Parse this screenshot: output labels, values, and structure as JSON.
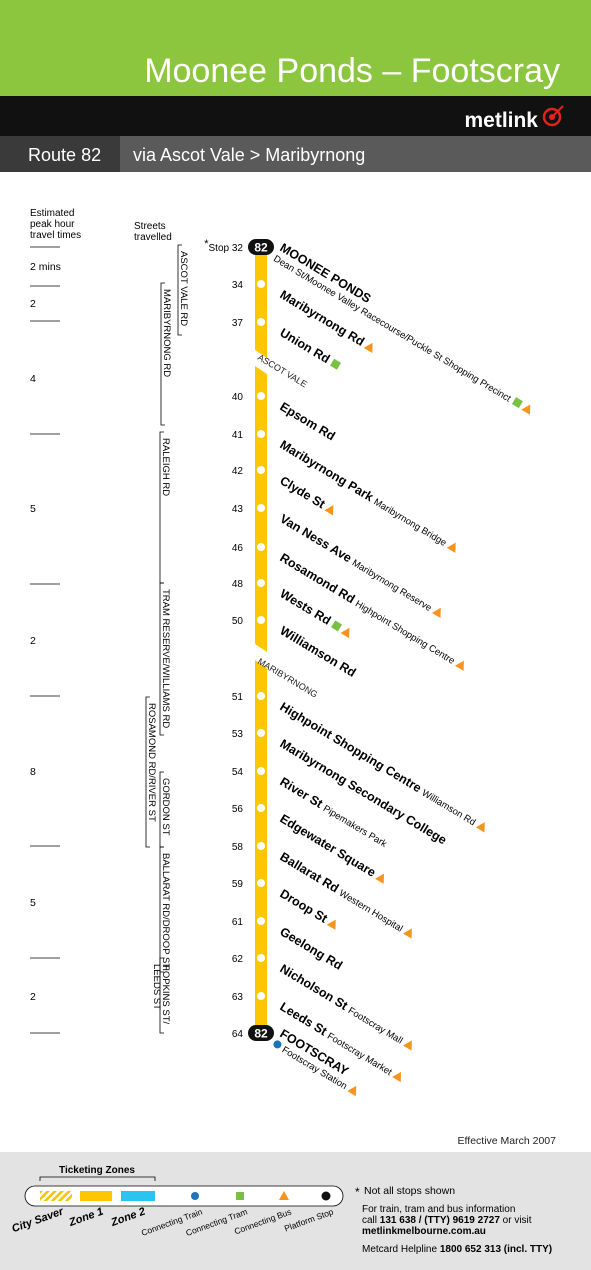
{
  "header": {
    "title": "Moonee Ponds – Footscray",
    "brand": "metlink",
    "route_label": "Route",
    "route_number": "82",
    "via": "via Ascot Vale > Maribyrnong"
  },
  "travel_times": {
    "heading": [
      "Estimated",
      "peak hour",
      "travel times"
    ],
    "times": [
      "2 mins",
      "2",
      "4",
      "5",
      "2",
      "8",
      "5",
      "2"
    ]
  },
  "streets": {
    "heading": [
      "Streets",
      "travelled"
    ],
    "items": [
      [
        "ASCOT VALE RD"
      ],
      [
        "MARIBYRNONG RD"
      ],
      [
        "RALEIGH RD"
      ],
      [
        "TRAM RESERVE/WILLIAMS RD"
      ],
      [
        "ROSAMOND RD/RIVER ST"
      ],
      [
        "GORDON ST"
      ],
      [
        "BALLARAT RD/DROOP ST"
      ],
      [
        "HOPKINS ST/",
        "LEEDS ST"
      ]
    ]
  },
  "route": {
    "footnote_mark": "*",
    "stop_prefix": "Stop",
    "sections": [
      "ASCOT VALE",
      "MARIBYRNONG"
    ],
    "stops": [
      {
        "number": "32",
        "name": "MOONEE PONDS",
        "note": "Dean St/Moonee Valley Racecourse/Puckle St Shopping Precinct",
        "connections": [
          "tram",
          "bus"
        ]
      },
      {
        "number": "34",
        "name": "Maribyrnong Rd",
        "connections": [
          "bus"
        ]
      },
      {
        "number": "37",
        "name": "Union Rd",
        "connections": [
          "tram"
        ]
      },
      {
        "number": "40",
        "name": "Epsom Rd"
      },
      {
        "number": "41",
        "name": "Maribyrnong Park",
        "note": "Maribyrnong Bridge",
        "connections": [
          "bus"
        ]
      },
      {
        "number": "42",
        "name": "Clyde St",
        "connections": [
          "bus"
        ]
      },
      {
        "number": "43",
        "name": "Van Ness Ave",
        "note": "Maribyrnong Reserve",
        "connections": [
          "bus"
        ]
      },
      {
        "number": "46",
        "name": "Rosamond Rd",
        "note": "Highpoint Shopping Centre",
        "connections": [
          "bus"
        ]
      },
      {
        "number": "48",
        "name": "Wests Rd",
        "connections": [
          "tram",
          "bus"
        ]
      },
      {
        "number": "50",
        "name": "Williamson Rd"
      },
      {
        "number": "51",
        "name": "Highpoint Shopping Centre",
        "note": "Williamson Rd",
        "connections": [
          "bus"
        ]
      },
      {
        "number": "53",
        "name": "Maribyrnong Secondary College"
      },
      {
        "number": "54",
        "name": "River St",
        "note": "Pipemakers Park"
      },
      {
        "number": "56",
        "name": "Edgewater Square",
        "connections": [
          "bus"
        ]
      },
      {
        "number": "58",
        "name": "Ballarat Rd",
        "note": "Western Hospital",
        "connections": [
          "bus"
        ]
      },
      {
        "number": "59",
        "name": "Droop St",
        "connections": [
          "bus"
        ]
      },
      {
        "number": "61",
        "name": "Geelong Rd"
      },
      {
        "number": "62",
        "name": "Nicholson St",
        "note": "Footscray Mall",
        "connections": [
          "bus"
        ]
      },
      {
        "number": "63",
        "name": "Leeds St",
        "note": "Footscray Market",
        "connections": [
          "bus"
        ]
      },
      {
        "number": "64",
        "name": "FOOTSCRAY",
        "note": "Footscray Station",
        "connections": [
          "train",
          "bus"
        ]
      }
    ]
  },
  "footer": {
    "effective": "Effective March 2007",
    "zones_heading": "Ticketing Zones",
    "legend": [
      {
        "label": "City Saver",
        "symbol": "city-saver"
      },
      {
        "label": "Zone 1",
        "symbol": "zone1"
      },
      {
        "label": "Zone 2",
        "symbol": "zone2"
      },
      {
        "label": "Connecting Train",
        "symbol": "train"
      },
      {
        "label": "Connecting Tram",
        "symbol": "tram"
      },
      {
        "label": "Connecting Bus",
        "symbol": "bus"
      },
      {
        "label": "Platform Stop",
        "symbol": "platform"
      }
    ],
    "not_all": "Not all stops shown",
    "info": "For train, tram and bus information",
    "call": {
      "pre": "call",
      "numbers": "131 638 / (TTY) 9619 2727",
      "post": "or visit"
    },
    "website": "metlinkmelbourne.com.au",
    "helpline": {
      "label": "Metcard Helpline",
      "number": "1800 652 313 (incl. TTY)"
    }
  }
}
